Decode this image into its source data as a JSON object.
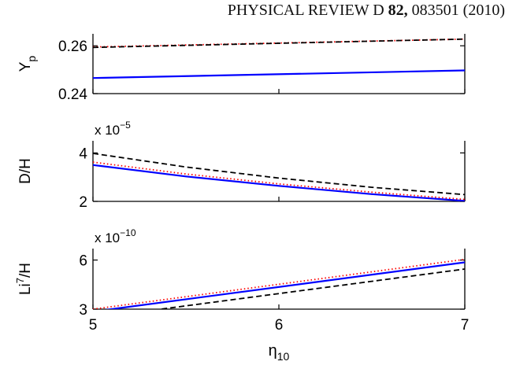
{
  "header": {
    "journal": "PHYSICAL REVIEW D",
    "volume": "82,",
    "article": "083501 (2010)"
  },
  "chart_data": [
    {
      "type": "line",
      "ylabel_main": "Y",
      "ylabel_sub": "p",
      "exponent_text": "",
      "xlim": [
        5,
        7
      ],
      "ylim": [
        0.24,
        0.265
      ],
      "yticks": [
        0.24,
        0.26
      ],
      "ytick_labels": [
        "0.24",
        "0.26"
      ],
      "x": [
        5,
        7
      ],
      "series": [
        {
          "values": [
            0.2465,
            0.2497
          ],
          "color": "#0000ff",
          "style": "solid"
        },
        {
          "values": [
            0.2595,
            0.2628
          ],
          "color": "#ff0000",
          "style": "dotted"
        },
        {
          "values": [
            0.2593,
            0.2628
          ],
          "color": "#000000",
          "style": "dashed"
        }
      ]
    },
    {
      "type": "line",
      "ylabel_main": "D/H",
      "exponent_base": "x 10",
      "exponent_power": "−5",
      "xlim": [
        5,
        7
      ],
      "ylim": [
        2,
        4.5
      ],
      "yticks": [
        2,
        4
      ],
      "ytick_labels": [
        "2",
        "4"
      ],
      "x": [
        5,
        5.5,
        6,
        6.5,
        7
      ],
      "series": [
        {
          "values": [
            3.5,
            3.03,
            2.64,
            2.3,
            2.02
          ],
          "color": "#0000ff",
          "style": "solid"
        },
        {
          "values": [
            3.62,
            3.13,
            2.72,
            2.38,
            2.08
          ],
          "color": "#ff0000",
          "style": "dotted"
        },
        {
          "values": [
            3.98,
            3.42,
            2.96,
            2.58,
            2.28
          ],
          "color": "#000000",
          "style": "dashed"
        }
      ]
    },
    {
      "type": "line",
      "ylabel_main": "Li",
      "ylabel_sup": "7",
      "ylabel_tail": "/H",
      "exponent_base": "x 10",
      "exponent_power": "−10",
      "xlim": [
        5,
        7
      ],
      "ylim": [
        3,
        6.7
      ],
      "yticks": [
        3,
        6
      ],
      "ytick_labels": [
        "3",
        "6"
      ],
      "xticks": [
        5,
        6,
        7
      ],
      "xtick_labels": [
        "5",
        "6",
        "7"
      ],
      "xlabel_main": "η",
      "xlabel_sub": "10",
      "x": [
        5,
        7
      ],
      "series": [
        {
          "values": [
            2.85,
            5.86
          ],
          "color": "#0000ff",
          "style": "solid"
        },
        {
          "values": [
            3.0,
            6.04
          ],
          "color": "#ff0000",
          "style": "dotted"
        },
        {
          "values": [
            2.45,
            5.45
          ],
          "color": "#000000",
          "style": "dashed"
        }
      ]
    }
  ]
}
